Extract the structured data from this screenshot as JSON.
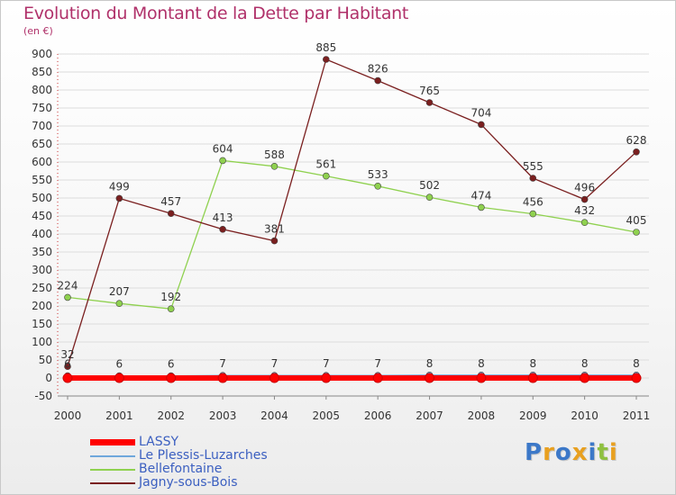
{
  "colors": {
    "title": "#b0316a",
    "axis_text": "#333333",
    "grid": "#dcdcdc",
    "legend_text": "#3b5fc0"
  },
  "chart_data": {
    "type": "line",
    "title": "Evolution du Montant de la Dette par Habitant",
    "subtitle": "(en €)",
    "xlabel": "",
    "ylabel": "",
    "categories": [
      "2000",
      "2001",
      "2002",
      "2003",
      "2004",
      "2005",
      "2006",
      "2007",
      "2008",
      "2009",
      "2010",
      "2011"
    ],
    "ylim": [
      -50,
      900
    ],
    "yticks": [
      -50,
      0,
      50,
      100,
      150,
      200,
      250,
      300,
      350,
      400,
      450,
      500,
      550,
      600,
      650,
      700,
      750,
      800,
      850,
      900
    ],
    "grid": true,
    "legend_position": "bottom-left",
    "series": [
      {
        "name": "LASSY",
        "color": "#ff0000",
        "values": [
          0,
          0,
          0,
          0,
          0,
          0,
          0,
          0,
          0,
          0,
          0,
          0
        ],
        "show_labels": false
      },
      {
        "name": "Le Plessis-Luzarches",
        "color": "#6fa8dc",
        "values": [
          6,
          6,
          6,
          7,
          7,
          7,
          7,
          8,
          8,
          8,
          8,
          8
        ],
        "show_labels": true
      },
      {
        "name": "Bellefontaine",
        "color": "#8fd14f",
        "values": [
          224,
          207,
          192,
          604,
          588,
          561,
          533,
          502,
          474,
          456,
          432,
          405
        ],
        "show_labels": true
      },
      {
        "name": "Jagny-sous-Bois",
        "color": "#7a1f1f",
        "values": [
          32,
          499,
          457,
          413,
          381,
          885,
          826,
          765,
          704,
          555,
          496,
          628
        ],
        "show_labels": true
      }
    ]
  },
  "logo": {
    "letters": [
      "P",
      "r",
      "o",
      "x",
      "i",
      "t",
      "i"
    ]
  }
}
